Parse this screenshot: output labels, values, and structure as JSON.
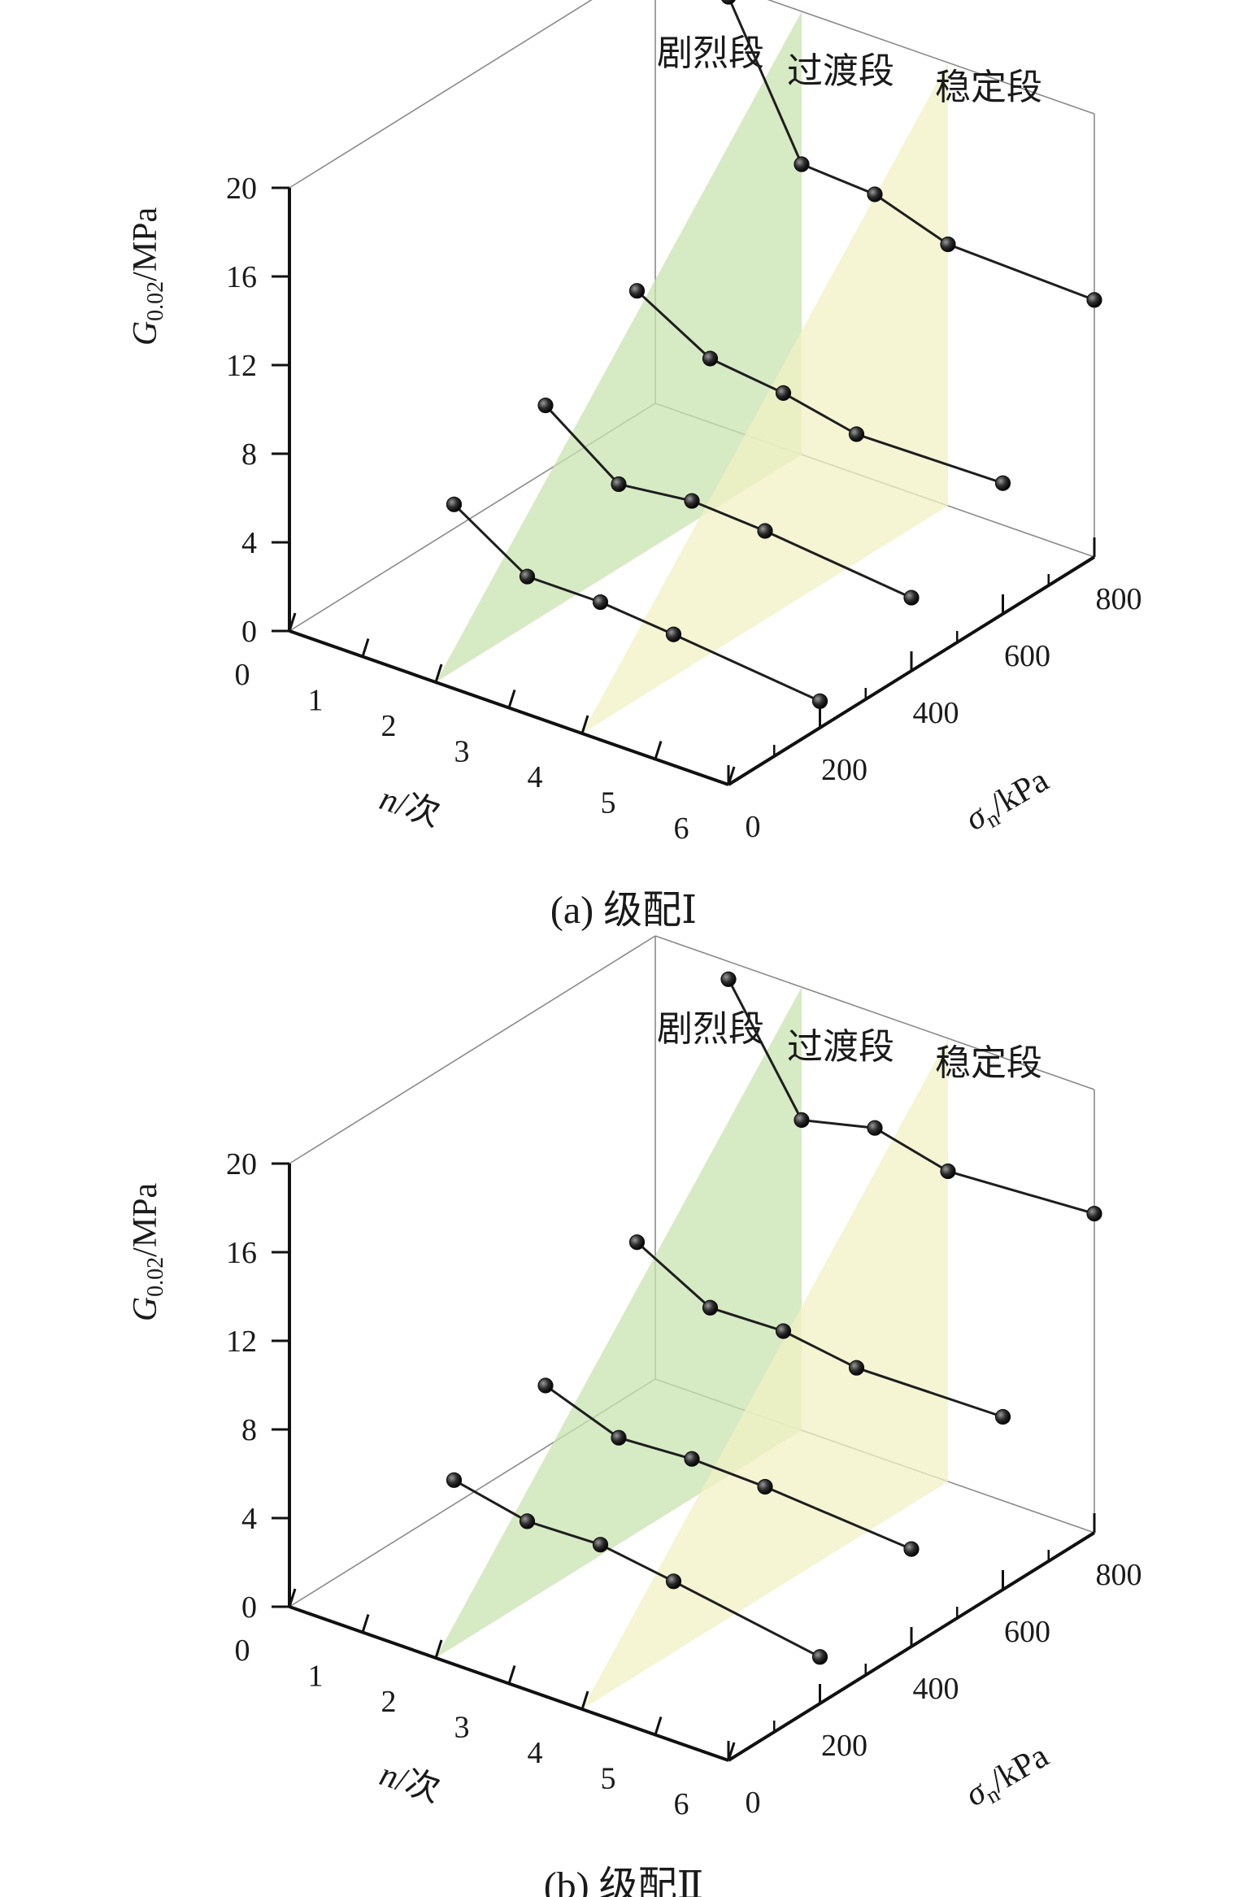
{
  "chart_data": [
    {
      "type": "line3d",
      "caption": "(a) 级配Ⅰ",
      "zlabel_main": "G",
      "zlabel_sub": "0.02",
      "zlabel_unit": "/MPa",
      "xlabel_main": "n",
      "xlabel_unit": "/次",
      "ylabel_main": "σ",
      "ylabel_sub": "n",
      "ylabel_unit": "/kPa",
      "x_ticks": [
        "0",
        "1",
        "2",
        "3",
        "4",
        "5",
        "6"
      ],
      "y_ticks": [
        "0",
        "200",
        "400",
        "600",
        "800"
      ],
      "z_ticks": [
        "0",
        "4",
        "8",
        "12",
        "16",
        "20"
      ],
      "xlim": [
        0,
        6
      ],
      "ylim": [
        0,
        800
      ],
      "zlim": [
        0,
        20
      ],
      "regions": [
        "剧烈段",
        "过渡段",
        "稳定段"
      ],
      "region_bounds_n": [
        2,
        4
      ],
      "region_colors": [
        "#c8e3b0",
        "#f1f0c4"
      ],
      "cycles": [
        1,
        2,
        3,
        4,
        6
      ],
      "series": [
        {
          "sigma": 200,
          "values": [
            4.3,
            2.2,
            2.2,
            1.9,
            1.2
          ]
        },
        {
          "sigma": 400,
          "values": [
            6.2,
            3.8,
            4.2,
            4.0,
            3.3
          ]
        },
        {
          "sigma": 600,
          "values": [
            8.8,
            6.9,
            6.5,
            5.8,
            5.9
          ]
        },
        {
          "sigma": 800,
          "values": [
            19.5,
            13.1,
            12.9,
            11.8,
            11.6
          ]
        }
      ]
    },
    {
      "type": "line3d",
      "caption": "(b) 级配Ⅱ",
      "zlabel_main": "G",
      "zlabel_sub": "0.02",
      "zlabel_unit": "/MPa",
      "xlabel_main": "n",
      "xlabel_unit": "/次",
      "ylabel_main": "σ",
      "ylabel_sub": "n",
      "ylabel_unit": "/kPa",
      "x_ticks": [
        "0",
        "1",
        "2",
        "3",
        "4",
        "5",
        "6"
      ],
      "y_ticks": [
        "0",
        "200",
        "400",
        "600",
        "800"
      ],
      "z_ticks": [
        "0",
        "4",
        "8",
        "12",
        "16",
        "20"
      ],
      "xlim": [
        0,
        6
      ],
      "ylim": [
        0,
        800
      ],
      "zlim": [
        0,
        20
      ],
      "regions": [
        "剧烈段",
        "过渡段",
        "稳定段"
      ],
      "region_bounds_n": [
        2,
        4
      ],
      "region_colors": [
        "#c8e3b0",
        "#f1f0c4"
      ],
      "cycles": [
        1,
        2,
        3,
        4,
        6
      ],
      "series": [
        {
          "sigma": 200,
          "values": [
            4.3,
            3.6,
            3.7,
            3.2,
            2.1
          ]
        },
        {
          "sigma": 400,
          "values": [
            6.0,
            4.8,
            5.0,
            4.9,
            4.4
          ]
        },
        {
          "sigma": 600,
          "values": [
            9.9,
            8.1,
            8.2,
            7.7,
            7.8
          ]
        },
        {
          "sigma": 800,
          "values": [
            19.2,
            14.0,
            14.8,
            14.0,
            14.4
          ]
        }
      ]
    }
  ]
}
